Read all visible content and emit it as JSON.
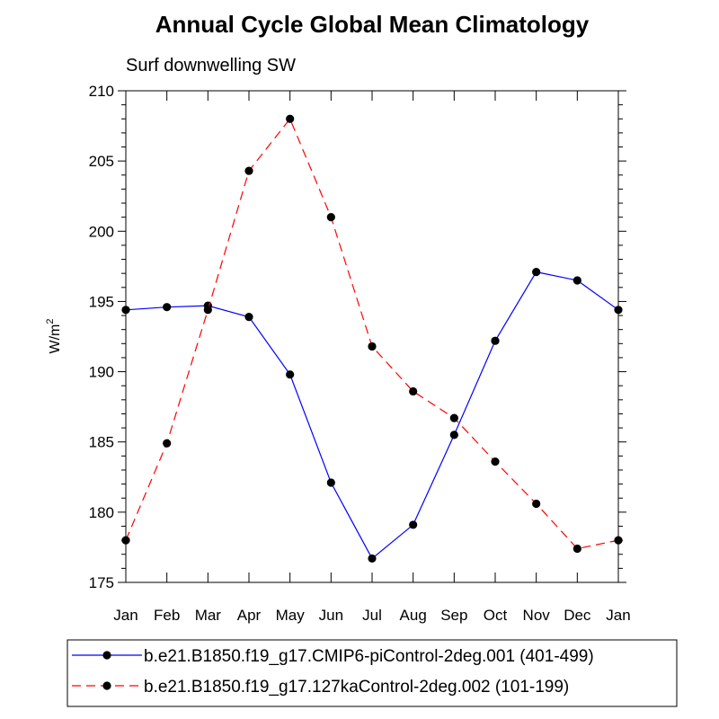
{
  "chart_data": {
    "type": "line",
    "title": "Annual Cycle Global Mean Climatology",
    "subtitle": "Surf downwelling SW",
    "xlabel": "",
    "ylabel": "W/m",
    "ylabel_superscript": "2",
    "categories": [
      "Jan",
      "Feb",
      "Mar",
      "Apr",
      "May",
      "Jun",
      "Jul",
      "Aug",
      "Sep",
      "Oct",
      "Nov",
      "Dec",
      "Jan"
    ],
    "ylim": [
      175,
      210
    ],
    "yticks": [
      175,
      180,
      185,
      190,
      195,
      200,
      205,
      210
    ],
    "grid": false,
    "legend_position": "bottom",
    "series": [
      {
        "name": "b.e21.B1850.f19_g17.CMIP6-piControl-2deg.001 (401-499)",
        "color": "#0000ff",
        "line_style": "solid",
        "marker": "filled-circle",
        "values": [
          194.4,
          194.6,
          194.7,
          193.9,
          189.8,
          182.1,
          176.7,
          179.1,
          185.5,
          192.2,
          197.1,
          196.5,
          194.4
        ]
      },
      {
        "name": "b.e21.B1850.f19_g17.127kaControl-2deg.002 (101-199)",
        "color": "#ff0000",
        "line_style": "dashed",
        "marker": "filled-circle",
        "values": [
          178.0,
          184.9,
          194.4,
          204.3,
          208.0,
          201.0,
          191.8,
          188.6,
          186.7,
          183.6,
          180.6,
          177.4,
          178.0
        ]
      }
    ]
  }
}
